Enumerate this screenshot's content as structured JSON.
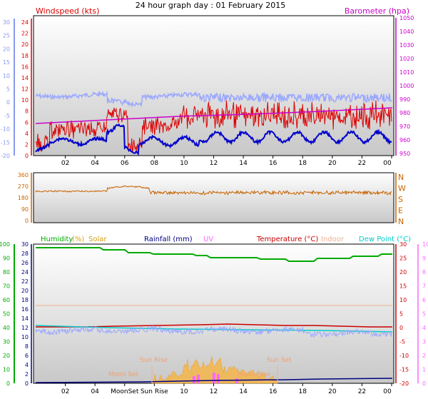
{
  "title": "24 hour graph day : 01 February 2015",
  "colors": {
    "windspeed": "#dd0000",
    "gust_avg": "#0000cc",
    "wind_light": "#9aa8ff",
    "barometer": "#cc00cc",
    "direction": "#c86400",
    "humidity": "#00aa00",
    "solar": "#d4a017",
    "rainfall": "#000080",
    "uv": "#ff66ff",
    "temperature": "#cc0000",
    "indoor": "#f0b090",
    "dewpoint": "#00cccc",
    "left_axis_blue": "#8899ee",
    "panel_border": "#000000"
  },
  "top_panel": {
    "left_label": "Windspeed (kts)",
    "right_label": "Barometer (hpa)",
    "left_outer_ticks": [
      "30",
      "25",
      "20",
      "15",
      "10",
      "5",
      "0",
      "-5",
      "-10",
      "-15",
      "-20"
    ],
    "left_inner_ticks": [
      "24",
      "22",
      "20",
      "18",
      "16",
      "14",
      "12",
      "10",
      "8",
      "6",
      "4",
      "2",
      "0"
    ],
    "right_ticks": [
      "1050",
      "1040",
      "1030",
      "1020",
      "1010",
      "1000",
      "990",
      "980",
      "970",
      "960",
      "950"
    ]
  },
  "mid_panel": {
    "left_ticks": [
      "360",
      "270",
      "180",
      "90",
      "0"
    ],
    "right_ticks": [
      "N",
      "W",
      "S",
      "E",
      "N"
    ]
  },
  "bottom_panel": {
    "labels": {
      "humidity": "Humidity",
      "humidity_unit": "(%)",
      "solar": "Solar",
      "rainfall": "Rainfall (mm)",
      "uv": "UV",
      "temperature": "Temperature (°C)",
      "indoor": "Indoor",
      "dewpoint": "Dew Point (°C)"
    },
    "left_outer_ticks": [
      "100",
      "90",
      "80",
      "70",
      "60",
      "50",
      "40",
      "30",
      "20",
      "10",
      "0"
    ],
    "left_inner_ticks": [
      "30",
      "28",
      "26",
      "24",
      "22",
      "20",
      "18",
      "16",
      "14",
      "12",
      "10",
      "8",
      "6",
      "4",
      "2",
      "0"
    ],
    "right_ticks": [
      "30",
      "25",
      "20",
      "15",
      "10",
      "5",
      "0",
      "-5",
      "-10",
      "-15",
      "-20"
    ],
    "right_outer_ticks": [
      "10",
      "9",
      "8",
      "7",
      "6",
      "5",
      "4",
      "3",
      "2",
      "1",
      "0"
    ],
    "events": {
      "sun_rise": "Sun Rise",
      "sun_set": "Sun Set",
      "moon_set": "Moon Set",
      "moon_rise": "Moon Rise"
    },
    "x_ticks": [
      "02",
      "04",
      "MoonSet",
      "Sun Rise",
      "10",
      "12",
      "14",
      "16",
      "18",
      "20",
      "22",
      "00"
    ]
  },
  "x_ticks": [
    "02",
    "04",
    "06",
    "08",
    "10",
    "12",
    "14",
    "16",
    "18",
    "20",
    "22",
    "00"
  ]
}
